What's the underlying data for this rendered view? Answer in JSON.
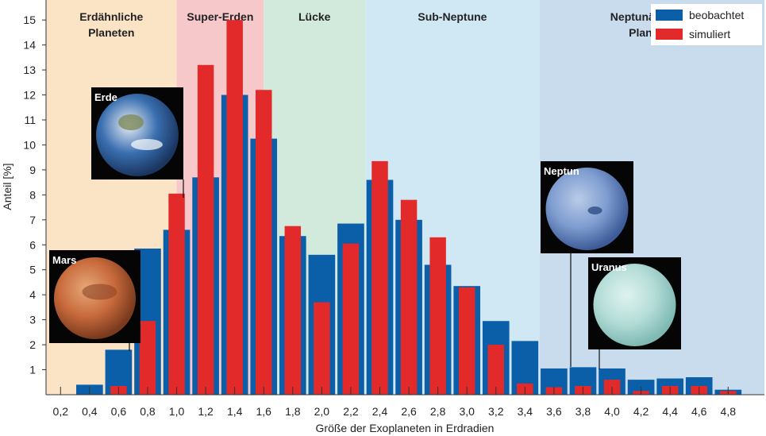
{
  "chart_data": {
    "type": "bar",
    "xlabel": "Größe der Exoplaneten in Erdradien",
    "ylabel": "Anteil [%]",
    "ylim": [
      0,
      15.8
    ],
    "xlim": [
      0.1,
      5.05
    ],
    "yticks": [
      1,
      2,
      3,
      4,
      5,
      6,
      7,
      8,
      9,
      10,
      11,
      12,
      13,
      14,
      15
    ],
    "categories": [
      "0,2",
      "0,4",
      "0,6",
      "0,8",
      "1,0",
      "1,2",
      "1,4",
      "1,6",
      "1,8",
      "2,0",
      "2,2",
      "2,4",
      "2,6",
      "2,8",
      "3,0",
      "3,2",
      "3,4",
      "3,6",
      "3,8",
      "4,0",
      "4,2",
      "4,4",
      "4,6",
      "4,8"
    ],
    "x": [
      0.2,
      0.4,
      0.6,
      0.8,
      1.0,
      1.2,
      1.4,
      1.6,
      1.8,
      2.0,
      2.2,
      2.4,
      2.6,
      2.8,
      3.0,
      3.2,
      3.4,
      3.6,
      3.8,
      4.0,
      4.2,
      4.4,
      4.6,
      4.8
    ],
    "series": [
      {
        "name": "beobachtet",
        "color": "#0b5ea8",
        "values": [
          0,
          0.4,
          1.8,
          5.85,
          6.6,
          8.7,
          12.0,
          10.25,
          6.35,
          5.6,
          6.85,
          8.6,
          7.0,
          5.2,
          4.35,
          2.95,
          2.15,
          1.05,
          1.1,
          1.05,
          0.6,
          0.65,
          0.7,
          0.2
        ]
      },
      {
        "name": "simuliert",
        "color": "#e32a2a",
        "values": [
          0,
          0,
          0.35,
          2.95,
          8.05,
          13.2,
          15.0,
          12.2,
          6.75,
          3.7,
          6.05,
          9.35,
          7.8,
          6.3,
          4.3,
          2.0,
          0.45,
          0.3,
          0.35,
          0.6,
          0.15,
          0.35,
          0.35,
          0.15
        ]
      }
    ],
    "regions": [
      {
        "title": "Erdähnliche\nPlaneten",
        "x0": 0.1,
        "x1": 1.0,
        "color": "#fbe3c6"
      },
      {
        "title": "Super-Erden",
        "x0": 1.0,
        "x1": 1.6,
        "color": "#f6c8c9"
      },
      {
        "title": "Lücke",
        "x0": 1.6,
        "x1": 2.3,
        "color": "#d2eadb"
      },
      {
        "title": "Sub-Neptune",
        "x0": 2.3,
        "x1": 3.5,
        "color": "#d0e8f4"
      },
      {
        "title": "Neptunähnliche\nPlaneten",
        "x0": 3.5,
        "x1": 5.05,
        "color": "#c8dced"
      }
    ],
    "legend_position": "top-right",
    "grid": false
  },
  "planets": [
    {
      "name": "Mars",
      "icon": "mars-photo-icon",
      "base": "#c86a3c",
      "dark": "#7a3a1e",
      "light": "#e7a878"
    },
    {
      "name": "Erde",
      "icon": "earth-photo-icon",
      "base": "#3a6fb0",
      "dark": "#1a3560",
      "light": "#e9eef5"
    },
    {
      "name": "Neptun",
      "icon": "neptune-photo-icon",
      "base": "#7f9dd0",
      "dark": "#3d5c99",
      "light": "#b9cbe8"
    },
    {
      "name": "Uranus",
      "icon": "uranus-photo-icon",
      "base": "#b5ddd8",
      "dark": "#7fb9b3",
      "light": "#dff2ef"
    }
  ]
}
